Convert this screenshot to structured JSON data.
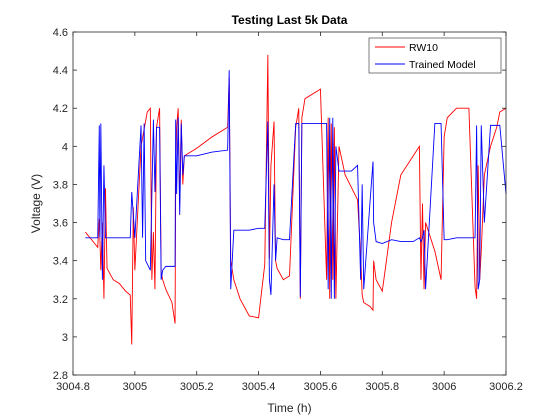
{
  "chart_data": {
    "type": "line",
    "title": "Testing Last 5k Data",
    "xlabel": "Time (h)",
    "ylabel": "Voltage (V)",
    "xlim": [
      3004.8,
      3006.2
    ],
    "ylim": [
      2.8,
      4.6
    ],
    "xticks": [
      "3004.8",
      "3005",
      "3005.2",
      "3005.4",
      "3005.6",
      "3005.8",
      "3006",
      "3006.2"
    ],
    "xtick_values": [
      3004.8,
      3005.0,
      3005.2,
      3005.4,
      3005.6,
      3005.8,
      3006.0,
      3006.2
    ],
    "yticks": [
      "2.8",
      "3",
      "3.2",
      "3.4",
      "3.6",
      "3.8",
      "4",
      "4.2",
      "4.4",
      "4.6"
    ],
    "ytick_values": [
      2.8,
      3.0,
      3.2,
      3.4,
      3.6,
      3.8,
      4.0,
      4.2,
      4.4,
      4.6
    ],
    "grid": false,
    "legend_position": "top-right",
    "series": [
      {
        "name": "RW10",
        "color": "#ff0000",
        "x": [
          3004.84,
          3004.87,
          3004.88,
          3004.885,
          3004.89,
          3004.895,
          3004.9,
          3004.905,
          3004.91,
          3004.93,
          3004.95,
          3004.97,
          3004.985,
          3004.99,
          3004.995,
          3005.0,
          3005.02,
          3005.04,
          3005.05,
          3005.055,
          3005.06,
          3005.065,
          3005.07,
          3005.08,
          3005.085,
          3005.09,
          3005.1,
          3005.12,
          3005.13,
          3005.132,
          3005.135,
          3005.14,
          3005.145,
          3005.15,
          3005.155,
          3005.16,
          3005.2,
          3005.25,
          3005.3,
          3005.305,
          3005.31,
          3005.32,
          3005.34,
          3005.37,
          3005.4,
          3005.42,
          3005.43,
          3005.435,
          3005.44,
          3005.45,
          3005.455,
          3005.46,
          3005.48,
          3005.5,
          3005.52,
          3005.53,
          3005.535,
          3005.54,
          3005.55,
          3005.6,
          3005.62,
          3005.625,
          3005.63,
          3005.635,
          3005.64,
          3005.645,
          3005.65,
          3005.66,
          3005.68,
          3005.72,
          3005.73,
          3005.735,
          3005.74,
          3005.76,
          3005.77,
          3005.772,
          3005.78,
          3005.8,
          3005.83,
          3005.86,
          3005.9,
          3005.92,
          3005.925,
          3005.93,
          3005.935,
          3005.94,
          3005.97,
          3005.99,
          3006.0,
          3006.01,
          3006.04,
          3006.08,
          3006.1,
          3006.105,
          3006.11,
          3006.115,
          3006.12,
          3006.13,
          3006.15,
          3006.17,
          3006.18,
          3006.2
        ],
        "y": [
          3.55,
          3.49,
          3.47,
          3.62,
          3.35,
          3.6,
          3.2,
          3.78,
          3.36,
          3.3,
          3.28,
          3.24,
          3.22,
          2.96,
          3.68,
          3.35,
          4.0,
          4.18,
          4.2,
          3.3,
          3.55,
          3.25,
          4.1,
          4.2,
          3.34,
          3.3,
          3.25,
          3.18,
          3.07,
          3.8,
          4.1,
          4.2,
          3.7,
          4.14,
          3.8,
          3.95,
          3.99,
          4.05,
          4.1,
          4.36,
          3.4,
          3.3,
          3.2,
          3.11,
          3.1,
          3.38,
          4.48,
          3.41,
          3.9,
          4.13,
          3.4,
          3.36,
          3.3,
          3.32,
          4.1,
          4.2,
          3.2,
          4.15,
          4.25,
          4.3,
          3.3,
          4.15,
          3.2,
          4.12,
          3.3,
          4.1,
          3.2,
          4.0,
          3.85,
          3.72,
          3.43,
          3.22,
          3.18,
          3.16,
          3.14,
          3.4,
          3.3,
          3.24,
          3.6,
          3.85,
          3.95,
          4.0,
          3.3,
          3.7,
          3.25,
          3.6,
          3.45,
          3.3,
          4.05,
          4.15,
          4.2,
          4.2,
          3.26,
          3.2,
          3.9,
          3.3,
          3.45,
          3.85,
          4.0,
          4.1,
          4.18,
          4.2
        ]
      },
      {
        "name": "Trained Model",
        "color": "#0000ff",
        "x": [
          3004.84,
          3004.87,
          3004.88,
          3004.885,
          3004.887,
          3004.89,
          3004.895,
          3004.9,
          3004.905,
          3004.91,
          3004.92,
          3004.95,
          3004.985,
          3004.99,
          3005.0,
          3005.02,
          3005.025,
          3005.03,
          3005.035,
          3005.05,
          3005.06,
          3005.065,
          3005.07,
          3005.08,
          3005.085,
          3005.09,
          3005.1,
          3005.13,
          3005.132,
          3005.135,
          3005.14,
          3005.145,
          3005.15,
          3005.155,
          3005.16,
          3005.2,
          3005.25,
          3005.3,
          3005.305,
          3005.31,
          3005.32,
          3005.37,
          3005.4,
          3005.42,
          3005.43,
          3005.435,
          3005.44,
          3005.45,
          3005.455,
          3005.46,
          3005.48,
          3005.5,
          3005.52,
          3005.53,
          3005.535,
          3005.54,
          3005.6,
          3005.62,
          3005.625,
          3005.63,
          3005.635,
          3005.64,
          3005.645,
          3005.65,
          3005.66,
          3005.7,
          3005.72,
          3005.73,
          3005.735,
          3005.74,
          3005.76,
          3005.77,
          3005.772,
          3005.78,
          3005.8,
          3005.83,
          3005.86,
          3005.9,
          3005.92,
          3005.925,
          3005.93,
          3005.935,
          3005.94,
          3005.97,
          3005.99,
          3006.0,
          3006.01,
          3006.04,
          3006.08,
          3006.1,
          3006.105,
          3006.11,
          3006.115,
          3006.12,
          3006.13,
          3006.15,
          3006.17,
          3006.18,
          3006.2
        ],
        "y": [
          3.52,
          3.52,
          3.52,
          4.11,
          3.52,
          4.12,
          3.3,
          3.9,
          3.52,
          3.52,
          3.52,
          3.52,
          3.52,
          3.76,
          3.52,
          4.11,
          3.52,
          4.12,
          3.4,
          3.35,
          4.14,
          3.76,
          4.1,
          4.1,
          3.3,
          3.35,
          3.37,
          3.37,
          4.14,
          3.75,
          4.15,
          3.64,
          4.12,
          3.85,
          3.95,
          3.95,
          3.97,
          3.98,
          4.4,
          3.25,
          3.56,
          3.56,
          3.57,
          3.57,
          4.13,
          3.3,
          3.22,
          3.8,
          3.4,
          3.52,
          3.51,
          3.51,
          4.12,
          4.12,
          3.21,
          4.12,
          4.12,
          4.12,
          3.25,
          4.15,
          3.2,
          4.15,
          3.2,
          4.0,
          3.87,
          3.87,
          3.9,
          3.3,
          3.8,
          3.25,
          3.7,
          3.92,
          3.6,
          3.5,
          3.49,
          3.51,
          3.5,
          3.5,
          3.52,
          3.5,
          3.52,
          3.56,
          3.25,
          4.12,
          4.12,
          3.51,
          3.51,
          3.52,
          3.52,
          3.52,
          4.11,
          3.25,
          3.3,
          4.11,
          3.6,
          4.11,
          4.11,
          4.11,
          3.75
        ]
      }
    ]
  }
}
